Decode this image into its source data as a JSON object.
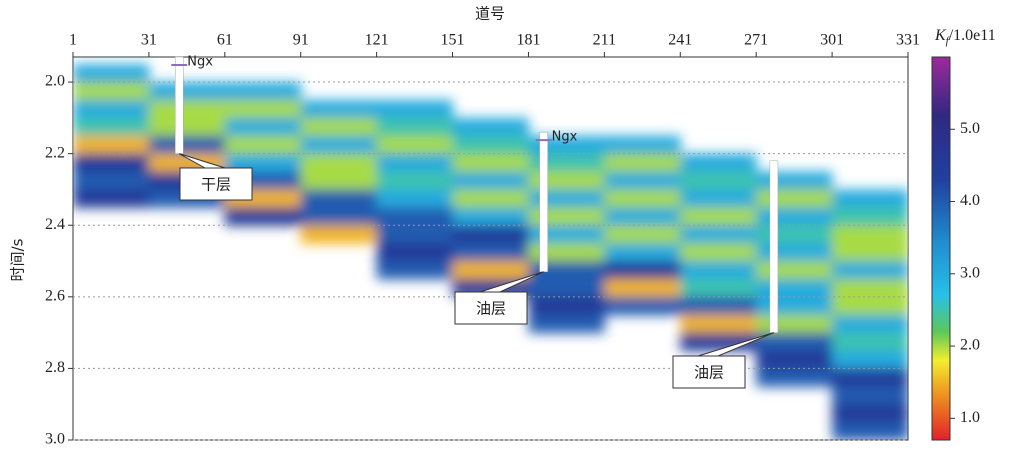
{
  "chart_data": {
    "type": "heatmap",
    "x_label": "道号",
    "y_label": "时间/s",
    "colorbar_label": {
      "symbol": "K",
      "subscript": "f",
      "unit": "/1.0e11"
    },
    "xlim": [
      1,
      331
    ],
    "xticks": [
      1,
      31,
      61,
      91,
      121,
      151,
      181,
      211,
      241,
      271,
      301,
      331
    ],
    "ylim": [
      1.93,
      3.0
    ],
    "yticks": [
      {
        "value": 2.0,
        "label": "2.0"
      },
      {
        "value": 2.2,
        "label": "2.2"
      },
      {
        "value": 2.4,
        "label": "2.4"
      },
      {
        "value": 2.6,
        "label": "2.6"
      },
      {
        "value": 2.8,
        "label": "2.8"
      },
      {
        "value": 3.0,
        "label": "3.0"
      }
    ],
    "grid": true,
    "clim": [
      0.7,
      6.0
    ],
    "cticks": [
      {
        "value": 1.0,
        "label": "1.0"
      },
      {
        "value": 2.0,
        "label": "2.0"
      },
      {
        "value": 3.0,
        "label": "3.0"
      },
      {
        "value": 4.0,
        "label": "4.0"
      },
      {
        "value": 5.0,
        "label": "5.0"
      }
    ],
    "colorscale": [
      {
        "value": 0.7,
        "color": "#e3202a"
      },
      {
        "value": 1.4,
        "color": "#f0a020"
      },
      {
        "value": 1.8,
        "color": "#f2ee30"
      },
      {
        "value": 2.2,
        "color": "#5cc85a"
      },
      {
        "value": 2.7,
        "color": "#28c0e8"
      },
      {
        "value": 3.4,
        "color": "#2090d0"
      },
      {
        "value": 4.3,
        "color": "#2040a0"
      },
      {
        "value": 5.2,
        "color": "#302880"
      },
      {
        "value": 6.0,
        "color": "#9c2a9c"
      }
    ],
    "xbins": [
      1,
      31,
      61,
      91,
      121,
      151,
      181,
      211,
      241,
      271,
      301,
      331
    ],
    "ybins": [
      1.95,
      2.0,
      2.05,
      2.1,
      2.15,
      2.2,
      2.25,
      2.3,
      2.35,
      2.4,
      2.45,
      2.5,
      2.55,
      2.6,
      2.65,
      2.7,
      2.75,
      2.8,
      2.85,
      2.9,
      2.95,
      3.0
    ],
    "z": [
      [
        3,
        null,
        null,
        null,
        null,
        null,
        null,
        null,
        null,
        null,
        null
      ],
      [
        2,
        3,
        3,
        null,
        null,
        null,
        null,
        null,
        null,
        null,
        null
      ],
      [
        3,
        2,
        2,
        3,
        3,
        null,
        null,
        null,
        null,
        null,
        null
      ],
      [
        2.5,
        2,
        3,
        2,
        2.5,
        3,
        null,
        null,
        null,
        null,
        null
      ],
      [
        1.5,
        4,
        2,
        3,
        2,
        2.5,
        3,
        3,
        null,
        null,
        null
      ],
      [
        4.5,
        1.5,
        3,
        2,
        3,
        2,
        2.5,
        2,
        3,
        null,
        null
      ],
      [
        4,
        4.5,
        4,
        2,
        2.5,
        3,
        2,
        3,
        2.5,
        3,
        null
      ],
      [
        4.5,
        4,
        1.5,
        4,
        3,
        2,
        3,
        2,
        3,
        2,
        3
      ],
      [
        null,
        null,
        4.5,
        4,
        4,
        3,
        2,
        3,
        2,
        3,
        2.5
      ],
      [
        null,
        null,
        null,
        1.5,
        4,
        4.5,
        3,
        2,
        3,
        2.5,
        2
      ],
      [
        null,
        null,
        null,
        null,
        4.5,
        4,
        2,
        3,
        2,
        3,
        2
      ],
      [
        null,
        null,
        null,
        null,
        4,
        1.5,
        4,
        4.5,
        3,
        2,
        3
      ],
      [
        null,
        null,
        null,
        null,
        null,
        4.5,
        4,
        1.5,
        2.5,
        3,
        2
      ],
      [
        null,
        null,
        null,
        null,
        null,
        null,
        4.5,
        4,
        4,
        3,
        2
      ],
      [
        null,
        null,
        null,
        null,
        null,
        null,
        4,
        null,
        1.5,
        2,
        3
      ],
      [
        null,
        null,
        null,
        null,
        null,
        null,
        null,
        null,
        4.5,
        4,
        2.5
      ],
      [
        null,
        null,
        null,
        null,
        null,
        null,
        null,
        null,
        null,
        4.5,
        3
      ],
      [
        null,
        null,
        null,
        null,
        null,
        null,
        null,
        null,
        null,
        4,
        4.5
      ],
      [
        null,
        null,
        null,
        null,
        null,
        null,
        null,
        null,
        null,
        null,
        4
      ],
      [
        null,
        null,
        null,
        null,
        null,
        null,
        null,
        null,
        null,
        null,
        4.5
      ],
      [
        null,
        null,
        null,
        null,
        null,
        null,
        null,
        null,
        null,
        null,
        4
      ]
    ],
    "wells": [
      {
        "trace": 43,
        "top": 1.93,
        "bottom": 2.2,
        "label": "Ngx",
        "callout": "干层"
      },
      {
        "trace": 187,
        "top": 2.14,
        "bottom": 2.53,
        "label": "Ngx",
        "callout": "油层"
      },
      {
        "trace": 278,
        "top": 2.22,
        "bottom": 2.7,
        "callout": "油层"
      }
    ]
  }
}
